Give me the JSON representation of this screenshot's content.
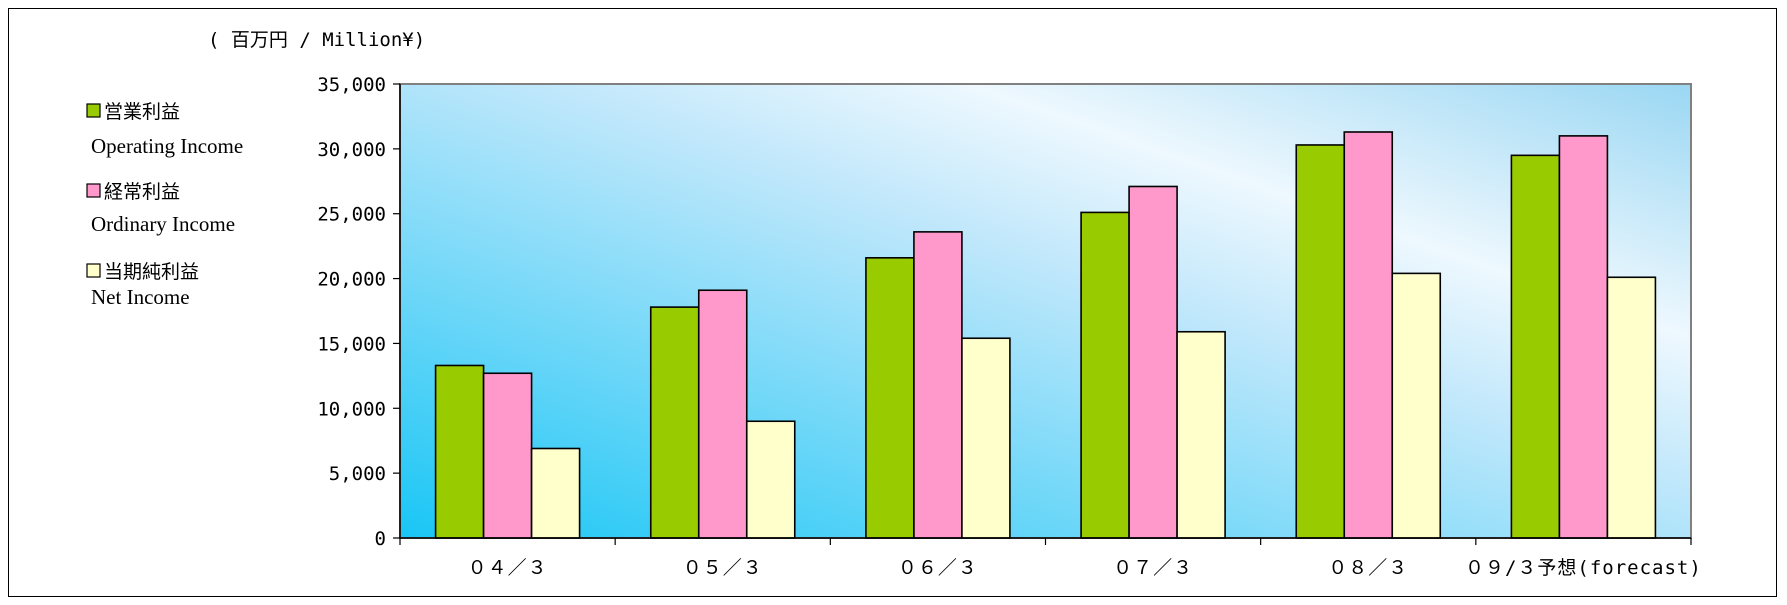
{
  "chart_data": {
    "type": "bar",
    "unit_label": "( 百万円 / Million¥)",
    "categories": [
      "０４／３",
      "０５／３",
      "０６／３",
      "０７／３",
      "０８／３",
      "０９/３予想(forecast)"
    ],
    "series": [
      {
        "name": "営業利益",
        "name_en": "Operating Income",
        "color": "#99cc00",
        "values": [
          13300,
          17800,
          21600,
          25100,
          30300,
          29500
        ]
      },
      {
        "name": "経常利益",
        "name_en": "Ordinary Income",
        "color": "#ff99cc",
        "values": [
          12700,
          19100,
          23600,
          27100,
          31300,
          31000
        ]
      },
      {
        "name": "当期純利益",
        "name_en": "Net Income",
        "color": "#ffffcc",
        "values": [
          6900,
          9000,
          15400,
          15900,
          20400,
          20100
        ]
      }
    ],
    "ylim": [
      0,
      35000
    ],
    "yticks": [
      0,
      5000,
      10000,
      15000,
      20000,
      25000,
      30000,
      35000
    ],
    "ytick_labels": [
      "0",
      "5,000",
      "10,000",
      "15,000",
      "20,000",
      "25,000",
      "30,000",
      "35,000"
    ],
    "legend_position": "left",
    "grid": false,
    "plot_background": "light blue gradient"
  }
}
